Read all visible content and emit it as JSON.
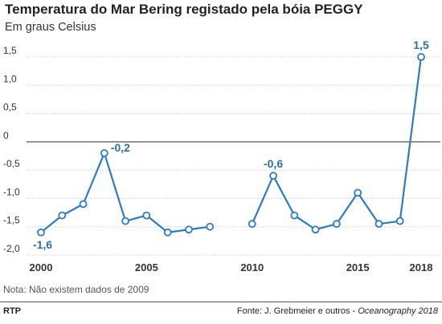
{
  "header": {
    "title": "Temperatura do Mar Bering registado pela bóia PEGGY",
    "subtitle": "Em graus Celsius"
  },
  "footer": {
    "note": "Nota: Não existem dados de 2009",
    "brand": "RTP",
    "source_prefix": "Fonte: J. Grebmeier e outros - ",
    "source_pub": "Oceanography 2018"
  },
  "colors": {
    "line": "#2f7bbd",
    "label": "#2f6ea8",
    "grid": "#cccccc",
    "zero_line": "#555555",
    "axis_text": "#333333"
  },
  "chart_data": {
    "type": "line",
    "x": [
      2000,
      2001,
      2002,
      2003,
      2004,
      2005,
      2006,
      2007,
      2008,
      2009,
      2010,
      2011,
      2012,
      2013,
      2014,
      2015,
      2016,
      2017,
      2018
    ],
    "series": [
      {
        "values": [
          -1.6,
          -1.3,
          -1.1,
          -0.2,
          -1.4,
          -1.3,
          -1.6,
          -1.55,
          -1.5,
          null,
          -1.45,
          -0.6,
          -1.3,
          -1.55,
          -1.45,
          -0.9,
          -1.45,
          -1.4,
          1.5
        ]
      }
    ],
    "y_ticks": [
      1.5,
      1.0,
      0.5,
      0,
      -0.5,
      -1.0,
      -1.5,
      -2.0
    ],
    "y_tick_labels": [
      "1,5",
      "1,0",
      "0,5",
      "0",
      "-0,5",
      "-1,0",
      "-1,5",
      "-2,0"
    ],
    "x_ticks": [
      2000,
      2005,
      2010,
      2015,
      2018
    ],
    "x_tick_labels": [
      "2000",
      "2005",
      "2010",
      "2015",
      "2018"
    ],
    "ylim": [
      -2.0,
      1.5
    ],
    "grid": true,
    "annotations": [
      {
        "x": 2000,
        "y": -1.6,
        "text": "-1,6",
        "position": "below"
      },
      {
        "x": 2003,
        "y": -0.2,
        "text": "-0,2",
        "position": "right"
      },
      {
        "x": 2011,
        "y": -0.6,
        "text": "-0,6",
        "position": "above"
      },
      {
        "x": 2018,
        "y": 1.5,
        "text": "1,5",
        "position": "above"
      }
    ]
  }
}
